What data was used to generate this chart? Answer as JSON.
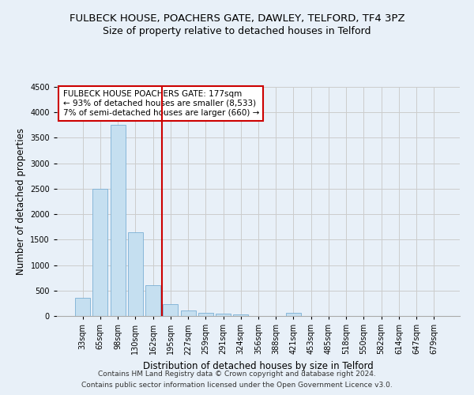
{
  "title": "FULBECK HOUSE, POACHERS GATE, DAWLEY, TELFORD, TF4 3PZ",
  "subtitle": "Size of property relative to detached houses in Telford",
  "xlabel": "Distribution of detached houses by size in Telford",
  "ylabel": "Number of detached properties",
  "categories": [
    "33sqm",
    "65sqm",
    "98sqm",
    "130sqm",
    "162sqm",
    "195sqm",
    "227sqm",
    "259sqm",
    "291sqm",
    "324sqm",
    "356sqm",
    "388sqm",
    "421sqm",
    "453sqm",
    "485sqm",
    "518sqm",
    "550sqm",
    "582sqm",
    "614sqm",
    "647sqm",
    "679sqm"
  ],
  "values": [
    360,
    2500,
    3750,
    1640,
    600,
    230,
    110,
    65,
    40,
    35,
    0,
    0,
    60,
    0,
    0,
    0,
    0,
    0,
    0,
    0,
    0
  ],
  "bar_color": "#c5dff0",
  "bar_edge_color": "#7bafd4",
  "vline_color": "#cc0000",
  "annotation_text": "FULBECK HOUSE POACHERS GATE: 177sqm\n← 93% of detached houses are smaller (8,533)\n7% of semi-detached houses are larger (660) →",
  "annotation_box_color": "#ffffff",
  "annotation_box_edge": "#cc0000",
  "ylim": [
    0,
    4500
  ],
  "yticks": [
    0,
    500,
    1000,
    1500,
    2000,
    2500,
    3000,
    3500,
    4000,
    4500
  ],
  "footer1": "Contains HM Land Registry data © Crown copyright and database right 2024.",
  "footer2": "Contains public sector information licensed under the Open Government Licence v3.0.",
  "background_color": "#e8f0f8",
  "plot_background": "#e8f0f8",
  "title_fontsize": 9.5,
  "subtitle_fontsize": 9,
  "tick_fontsize": 7,
  "ylabel_fontsize": 8.5,
  "xlabel_fontsize": 8.5,
  "footer_fontsize": 6.5,
  "annotation_fontsize": 7.5
}
